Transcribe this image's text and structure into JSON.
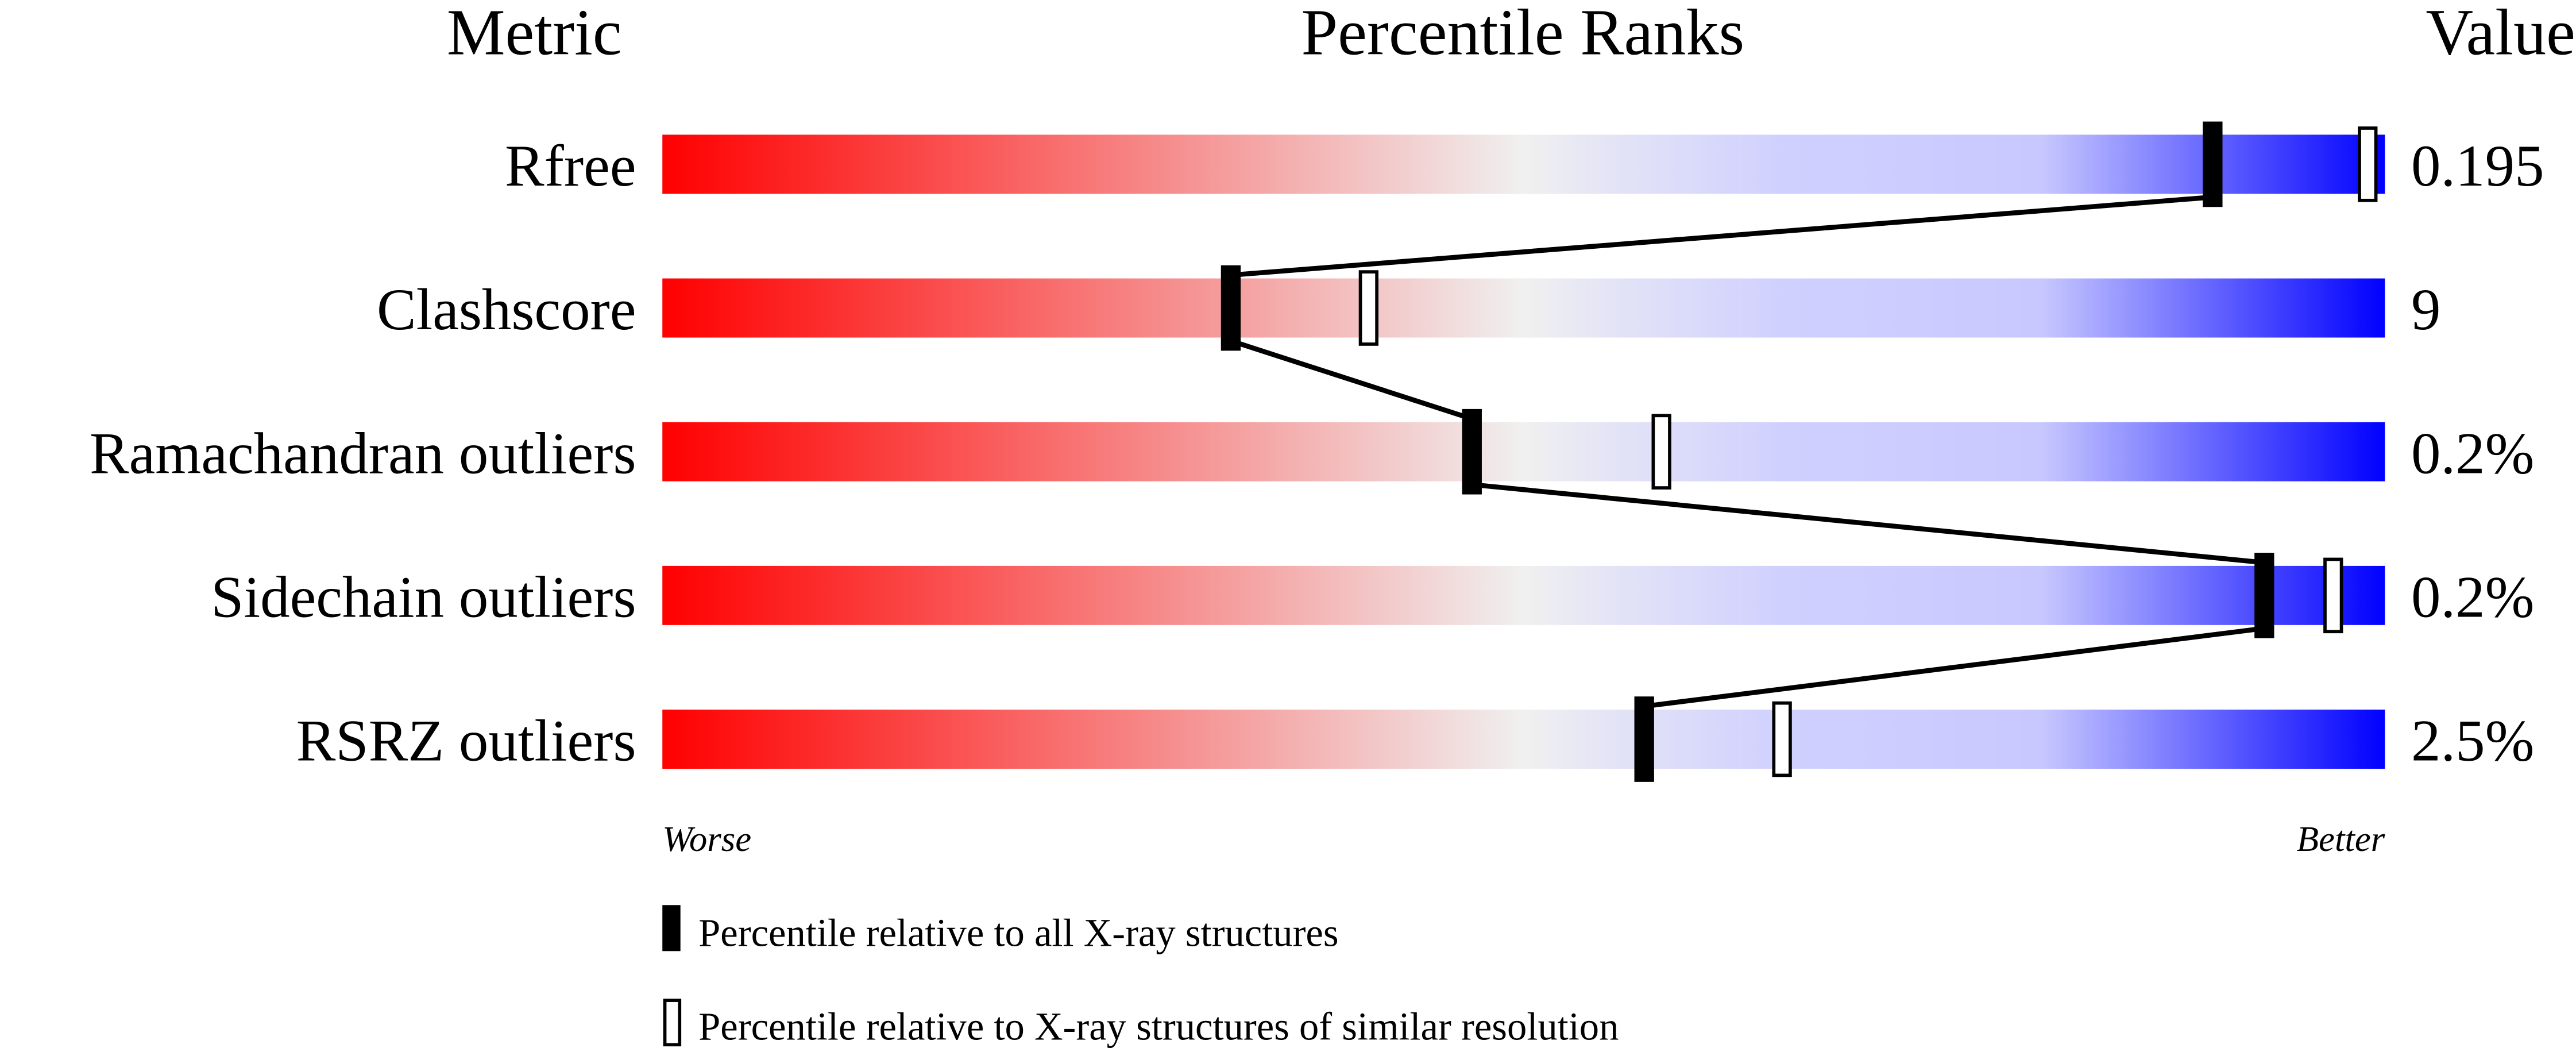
{
  "header": {
    "metric": "Metric",
    "percentile": "Percentile Ranks",
    "value": "Value"
  },
  "chart_data": {
    "type": "bar",
    "xlim": [
      0,
      100
    ],
    "gradient_colors": [
      "#ff0000",
      "#f0f0f0",
      "#d0d0ff",
      "#0000ff"
    ],
    "categories": [
      "Rfree",
      "Clashscore",
      "Ramachandran outliers",
      "Sidechain outliers",
      "RSRZ outliers"
    ],
    "values": [
      "0.195",
      "9",
      "0.2%",
      "0.2%",
      "2.5%"
    ],
    "series": [
      {
        "name": "Percentile relative to all X-ray structures",
        "marker": "filled",
        "values": [
          90,
          33,
          47,
          93,
          57
        ]
      },
      {
        "name": "Percentile relative to X-ray structures of similar resolution",
        "marker": "open",
        "values": [
          99,
          41,
          58,
          97,
          65
        ]
      }
    ],
    "axis_labels": {
      "left": "Worse",
      "right": "Better"
    }
  }
}
